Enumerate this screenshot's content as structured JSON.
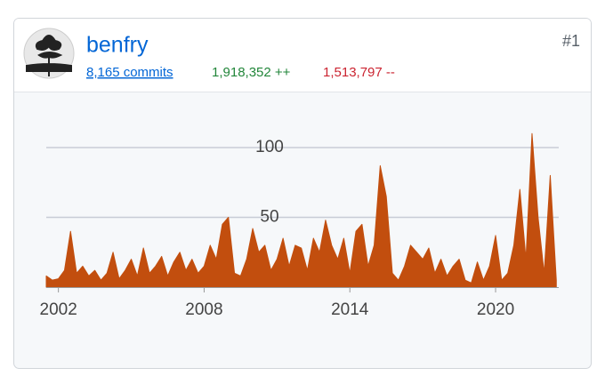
{
  "header": {
    "name": "benfry",
    "commits": "8,165 commits",
    "additions": "1,918,352 ++",
    "deletions": "1,513,797 --",
    "rank": "#1"
  },
  "chart_data": {
    "type": "area",
    "x": [
      2001.5,
      2001.75,
      2002,
      2002.25,
      2002.5,
      2002.75,
      2003,
      2003.25,
      2003.5,
      2003.75,
      2004,
      2004.25,
      2004.5,
      2004.75,
      2005,
      2005.25,
      2005.5,
      2005.75,
      2006,
      2006.25,
      2006.5,
      2006.75,
      2007,
      2007.25,
      2007.5,
      2007.75,
      2008,
      2008.25,
      2008.5,
      2008.75,
      2009,
      2009.25,
      2009.5,
      2009.75,
      2010,
      2010.25,
      2010.5,
      2010.75,
      2011,
      2011.25,
      2011.5,
      2011.75,
      2012,
      2012.25,
      2012.5,
      2012.75,
      2013,
      2013.25,
      2013.5,
      2013.75,
      2014,
      2014.25,
      2014.5,
      2014.75,
      2015,
      2015.25,
      2015.5,
      2015.75,
      2016,
      2016.25,
      2016.5,
      2016.75,
      2017,
      2017.25,
      2017.5,
      2017.75,
      2018,
      2018.25,
      2018.5,
      2018.75,
      2019,
      2019.25,
      2019.5,
      2019.75,
      2020,
      2020.25,
      2020.5,
      2020.75,
      2021,
      2021.25,
      2021.5,
      2021.75,
      2022,
      2022.25,
      2022.5
    ],
    "values": [
      8,
      5,
      6,
      12,
      40,
      10,
      15,
      8,
      12,
      5,
      10,
      25,
      6,
      12,
      20,
      8,
      28,
      10,
      15,
      22,
      8,
      18,
      25,
      12,
      20,
      10,
      15,
      30,
      20,
      45,
      50,
      10,
      8,
      20,
      42,
      25,
      30,
      12,
      20,
      35,
      15,
      30,
      28,
      12,
      35,
      25,
      48,
      30,
      20,
      35,
      10,
      40,
      45,
      15,
      30,
      87,
      65,
      10,
      5,
      15,
      30,
      25,
      20,
      28,
      10,
      20,
      8,
      15,
      20,
      5,
      3,
      18,
      5,
      15,
      37,
      5,
      10,
      30,
      70,
      20,
      110,
      50,
      10,
      80,
      5
    ],
    "color": "#c24e0e",
    "xlim": [
      2001.5,
      2022.6
    ],
    "ylim": [
      0,
      110
    ],
    "xticks": [
      2002,
      2008,
      2014,
      2020
    ],
    "yticks": [
      50,
      100
    ],
    "grid": true
  }
}
